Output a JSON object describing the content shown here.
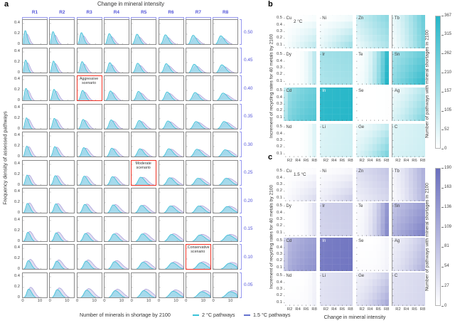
{
  "chart_data": {
    "panel_a": {
      "letter": "a",
      "type": "area",
      "subtype": "kde-density-grid",
      "title": "Change in mineral intensity",
      "xlabel": "Number of minerals in shortage by 2100",
      "ylabel": "Frequency density of assessed pathways",
      "col_labels": [
        "R1",
        "R2",
        "R3",
        "R4",
        "R5",
        "R6",
        "R7",
        "R8"
      ],
      "row_labels": [
        "0.50",
        "0.45",
        "0.40",
        "0.35",
        "0.30",
        "0.25",
        "0.20",
        "0.15",
        "0.10",
        "0.05"
      ],
      "y_ticks": [
        "0.4",
        "0.2",
        "0"
      ],
      "x_ticks": [
        "0",
        "10"
      ],
      "x_range": [
        0,
        14
      ],
      "y_range": [
        0,
        0.44
      ],
      "label_color": "#5254d9",
      "bracket_color": "#989af0",
      "flag_color": "#ee3124",
      "legend": [
        {
          "label": "2 °C pathways",
          "color": "#3bc3d8"
        },
        {
          "label": "1.5 °C pathways",
          "color": "#6673cf"
        }
      ],
      "annotations": [
        {
          "label": "Aggressive scenario",
          "row": 2,
          "col": 2
        },
        {
          "label": "Moderate scenario",
          "row": 5,
          "col": 4
        },
        {
          "label": "Conservative scenario",
          "row": 8,
          "col": 6
        }
      ],
      "series_model": {
        "note": "approximate density peaks per subplot [row][col], rows top(0.50) to bottom(0.05)",
        "cyan_color": "#3bbfd6",
        "cyan_fill": "rgba(151,217,235,0.80)",
        "purple_color": "#a49bd8",
        "purple_fill": "rgba(186,180,224,0.45)",
        "cyan_peak_x": [
          [
            1.0,
            1.4,
            1.8,
            2.3,
            2.7,
            3.1,
            3.5,
            3.9
          ],
          [
            1.2,
            1.7,
            2.2,
            2.6,
            3.1,
            3.6,
            4.1,
            4.5
          ],
          [
            1.4,
            2.0,
            2.5,
            3.0,
            3.6,
            4.1,
            4.6,
            5.2
          ],
          [
            1.7,
            2.2,
            2.8,
            3.4,
            4.0,
            4.6,
            5.2,
            5.8
          ],
          [
            1.9,
            2.5,
            3.2,
            3.8,
            4.4,
            5.1,
            5.7,
            6.4
          ],
          [
            2.1,
            2.8,
            3.5,
            4.2,
            4.9,
            5.6,
            6.3,
            7.0
          ],
          [
            2.3,
            3.1,
            3.8,
            4.6,
            5.3,
            6.1,
            6.8,
            7.6
          ],
          [
            2.5,
            3.3,
            4.2,
            5.0,
            5.8,
            6.6,
            7.4,
            8.2
          ],
          [
            2.8,
            3.6,
            4.5,
            5.3,
            6.2,
            7.1,
            7.9,
            8.8
          ],
          [
            3.0,
            3.9,
            4.8,
            5.7,
            6.6,
            7.6,
            8.5,
            9.4
          ]
        ],
        "cyan_peak_h": [
          [
            0.27,
            0.25,
            0.23,
            0.21,
            0.2,
            0.19,
            0.18,
            0.17
          ],
          [
            0.25,
            0.23,
            0.22,
            0.2,
            0.19,
            0.18,
            0.17,
            0.16
          ],
          [
            0.24,
            0.22,
            0.2,
            0.19,
            0.18,
            0.17,
            0.16,
            0.15
          ],
          [
            0.22,
            0.21,
            0.19,
            0.18,
            0.17,
            0.16,
            0.15,
            0.15
          ],
          [
            0.21,
            0.2,
            0.18,
            0.17,
            0.16,
            0.16,
            0.15,
            0.14
          ],
          [
            0.2,
            0.19,
            0.18,
            0.17,
            0.16,
            0.15,
            0.14,
            0.14
          ],
          [
            0.19,
            0.18,
            0.17,
            0.16,
            0.15,
            0.14,
            0.14,
            0.13
          ],
          [
            0.18,
            0.17,
            0.16,
            0.15,
            0.15,
            0.14,
            0.13,
            0.13
          ],
          [
            0.17,
            0.16,
            0.16,
            0.15,
            0.14,
            0.13,
            0.13,
            0.12
          ],
          [
            0.17,
            0.16,
            0.15,
            0.14,
            0.14,
            0.13,
            0.12,
            0.12
          ]
        ],
        "purple_model": {
          "x_shift": 1.0,
          "x_scale": 1.05,
          "h_base": 0.74,
          "h_per_row": 0.05,
          "width_scale": 1.3
        },
        "width_model": {
          "sl": [
            0.55,
            0.18
          ],
          "sr": [
            0.9,
            0.3
          ]
        }
      }
    },
    "panel_b": {
      "letter": "b",
      "type": "heatmap",
      "temp_label": "2 °C",
      "ylabel": "Increment of recycling rates for 40 metals by 2100",
      "x_categories": [
        "R1",
        "R2",
        "R3",
        "R4",
        "R5",
        "R6",
        "R7",
        "R8"
      ],
      "y_categories": [
        "0.5",
        "0.4",
        "0.3",
        "0.2",
        "0.1"
      ],
      "x_tick_labels": [
        "R2",
        "R4",
        "R6",
        "R8"
      ],
      "accent": "#25b6c8",
      "colorbar": {
        "label": "Number of pathways with mineral shortages in 2100",
        "ticks": [
          "367",
          "315",
          "262",
          "210",
          "157",
          "105",
          "52",
          "0"
        ],
        "max_color": "#25b6c8"
      },
      "pattern_note": "cell intensity fraction = base + gx*xn^pow + gy*yn + gxy*xn*yn (xn: R1→R8, yn: 0.5→0.1)",
      "metals": [
        {
          "name": "Cu",
          "base": 0,
          "gx": 0.03,
          "gy": 0.02,
          "gxy": 0.22,
          "pow": 2.2
        },
        {
          "name": "Ni",
          "base": 0.01,
          "gx": 0.06,
          "gy": 0.1,
          "gxy": 0.25,
          "pow": 1.5
        },
        {
          "name": "Zn",
          "base": 0.24,
          "gx": 0.28,
          "gy": -0.14,
          "gxy": 0,
          "pow": 1
        },
        {
          "name": "Tb",
          "base": 0.12,
          "gx": 0.55,
          "gy": -0.06,
          "gxy": 0,
          "pow": 1.3
        },
        {
          "name": "Dy",
          "base": 0,
          "gx": 0.3,
          "gy": 0,
          "gxy": 0,
          "pow": 4
        },
        {
          "name": "Ir",
          "base": 0.42,
          "gx": 0.05,
          "gy": -0.04,
          "gxy": 0,
          "pow": 1
        },
        {
          "name": "Te",
          "base": 0.02,
          "gx": 0.9,
          "gy": 0.02,
          "gxy": 0.06,
          "pow": 2.2
        },
        {
          "name": "Sn",
          "base": 0.42,
          "gx": 0.28,
          "gy": 0.12,
          "gxy": 0.08,
          "pow": 1
        },
        {
          "name": "Cd",
          "base": 0.28,
          "gx": 0.4,
          "gy": 0.1,
          "gxy": 0,
          "pow": 0.35
        },
        {
          "name": "In",
          "base": 0.95,
          "gx": 0.03,
          "gy": 0.01,
          "gxy": 0,
          "pow": 1,
          "label_light": true
        },
        {
          "name": "Se",
          "base": 0,
          "gx": 0.01,
          "gy": 0,
          "gxy": 0,
          "pow": 3
        },
        {
          "name": "Ag",
          "base": 0.08,
          "gx": 0.26,
          "gy": 0.1,
          "gxy": 0.12,
          "pow": 1.4
        },
        {
          "name": "Nd",
          "base": 0,
          "gx": 0.15,
          "gy": 0,
          "gxy": 0,
          "pow": 5
        },
        {
          "name": "Li",
          "base": 0.16,
          "gx": 0.05,
          "gy": 0.01,
          "gxy": 0,
          "pow": 1
        },
        {
          "name": "Ge",
          "base": 0.08,
          "gx": 0.18,
          "gy": 0.08,
          "gxy": 0.24,
          "pow": 1.8
        },
        {
          "name": "C",
          "base": 0.15,
          "gx": 0.06,
          "gy": 0.02,
          "gxy": 0,
          "pow": 1
        }
      ]
    },
    "panel_c": {
      "letter": "c",
      "type": "heatmap",
      "temp_label": "1.5 °C",
      "ylabel": "Increment of recycling rates for 40 metals by 2100",
      "xlabel": "Change in mineral intensity",
      "x_categories": [
        "R1",
        "R2",
        "R3",
        "R4",
        "R5",
        "R6",
        "R7",
        "R8"
      ],
      "y_categories": [
        "0.5",
        "0.4",
        "0.3",
        "0.2",
        "0.1"
      ],
      "x_tick_labels": [
        "R2",
        "R4",
        "R6",
        "R8"
      ],
      "accent": "#6a6fbe",
      "colorbar": {
        "label": "Number of pathways with mineral shortages in 2100",
        "ticks": [
          "190",
          "163",
          "136",
          "109",
          "81",
          "54",
          "27",
          "0"
        ],
        "max_color": "#6a6fbe"
      },
      "metals": [
        {
          "name": "Cu",
          "base": 0,
          "gx": 0.03,
          "gy": 0.02,
          "gxy": 0.18,
          "pow": 2.2
        },
        {
          "name": "Ni",
          "base": 0.02,
          "gx": 0.05,
          "gy": 0.1,
          "gxy": 0.15,
          "pow": 1.5
        },
        {
          "name": "Zn",
          "base": 0.22,
          "gx": 0.16,
          "gy": -0.1,
          "gxy": 0,
          "pow": 1
        },
        {
          "name": "Tb",
          "base": 0.1,
          "gx": 0.44,
          "gy": -0.04,
          "gxy": 0,
          "pow": 1.3
        },
        {
          "name": "Dy",
          "base": 0,
          "gx": 0.2,
          "gy": 0,
          "gxy": 0,
          "pow": 4
        },
        {
          "name": "Ir",
          "base": 0.32,
          "gx": 0.04,
          "gy": -0.02,
          "gxy": 0,
          "pow": 1
        },
        {
          "name": "Te",
          "base": 0.03,
          "gx": 0.68,
          "gy": 0.02,
          "gxy": 0.06,
          "pow": 2
        },
        {
          "name": "Sn",
          "base": 0.42,
          "gx": 0.25,
          "gy": 0.12,
          "gxy": 0.06,
          "pow": 1
        },
        {
          "name": "Cd",
          "base": 0.32,
          "gx": 0.34,
          "gy": 0.08,
          "gxy": 0,
          "pow": 0.35
        },
        {
          "name": "In",
          "base": 0.9,
          "gx": 0.04,
          "gy": 0.01,
          "gxy": 0,
          "pow": 1,
          "label_light": true
        },
        {
          "name": "Se",
          "base": 0,
          "gx": 0.06,
          "gy": 0.02,
          "gxy": 0,
          "pow": 4
        },
        {
          "name": "Ag",
          "base": 0.12,
          "gx": 0.26,
          "gy": 0.06,
          "gxy": 0.08,
          "pow": 1.4
        },
        {
          "name": "Nd",
          "base": 0,
          "gx": 0.08,
          "gy": 0.02,
          "gxy": 0,
          "pow": 5
        },
        {
          "name": "Li",
          "base": 0.2,
          "gx": 0.05,
          "gy": 0.01,
          "gxy": 0,
          "pow": 1
        },
        {
          "name": "Ge",
          "base": 0.1,
          "gx": 0.22,
          "gy": 0.08,
          "gxy": 0.16,
          "pow": 1.6
        },
        {
          "name": "C",
          "base": 0.2,
          "gx": 0.06,
          "gy": 0.02,
          "gxy": 0,
          "pow": 1
        }
      ]
    }
  }
}
